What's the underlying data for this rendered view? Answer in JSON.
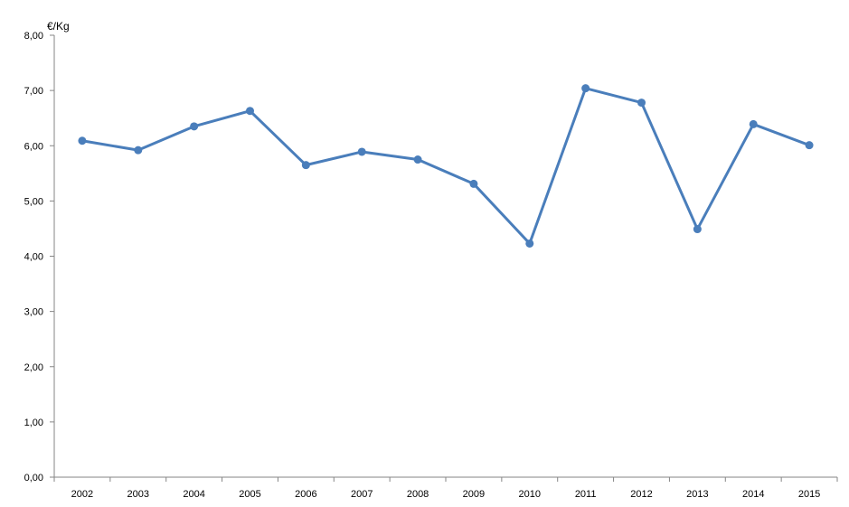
{
  "chart_data": {
    "type": "line",
    "title": "",
    "xlabel": "",
    "ylabel": "€/Kg",
    "categories": [
      "2002",
      "2003",
      "2004",
      "2005",
      "2006",
      "2007",
      "2008",
      "2009",
      "2010",
      "2011",
      "2012",
      "2013",
      "2014",
      "2015"
    ],
    "series": [
      {
        "values": [
          6.09,
          5.92,
          6.35,
          6.63,
          5.65,
          5.89,
          5.75,
          5.31,
          4.23,
          7.04,
          6.78,
          4.49,
          6.39,
          6.01
        ],
        "color": "#4a7ebb"
      }
    ],
    "ylim": [
      0,
      8
    ],
    "yticks": [
      "0,00",
      "1,00",
      "2,00",
      "3,00",
      "4,00",
      "5,00",
      "6,00",
      "7,00",
      "8,00"
    ],
    "grid": false,
    "legend": "none",
    "axis_color": "#868686"
  }
}
